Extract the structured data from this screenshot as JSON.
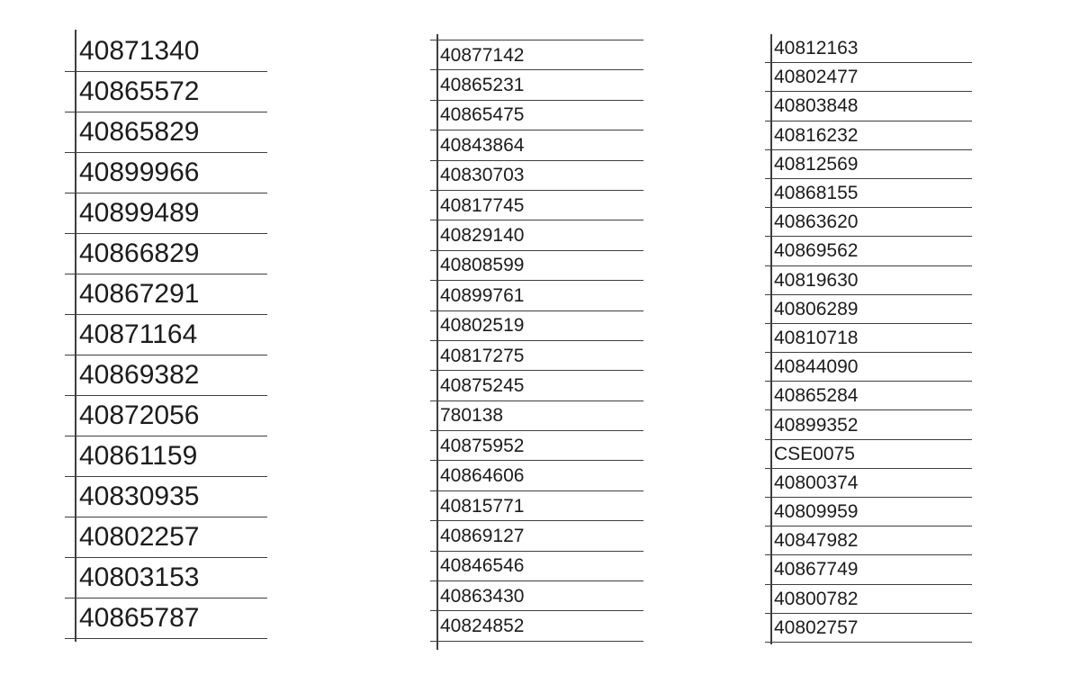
{
  "page": {
    "background_color": "#ffffff",
    "rule_line_color": "#3e3e3e",
    "text_color": "#1c1c1c"
  },
  "tables": [
    {
      "name": "id-list-1",
      "rows": [
        "40871340",
        "40865572",
        "40865829",
        "40899966",
        "40899489",
        "40866829",
        "40867291",
        "40871164",
        "40869382",
        "40872056",
        "40861159",
        "40830935",
        "40802257",
        "40803153",
        "40865787"
      ]
    },
    {
      "name": "id-list-2",
      "rows": [
        "40877142",
        "40865231",
        "40865475",
        "40843864",
        "40830703",
        "40817745",
        "40829140",
        "40808599",
        "40899761",
        "40802519",
        "40817275",
        "40875245",
        "780138",
        "40875952",
        "40864606",
        "40815771",
        "40869127",
        "40846546",
        "40863430",
        "40824852"
      ]
    },
    {
      "name": "id-list-3",
      "rows": [
        "40812163",
        "40802477",
        "40803848",
        "40816232",
        "40812569",
        "40868155",
        "40863620",
        "40869562",
        "40819630",
        "40806289",
        "40810718",
        "40844090",
        "40865284",
        "40899352",
        "CSE0075",
        "40800374",
        "40809959",
        "40847982",
        "40867749",
        "40800782",
        "40802757"
      ]
    }
  ]
}
